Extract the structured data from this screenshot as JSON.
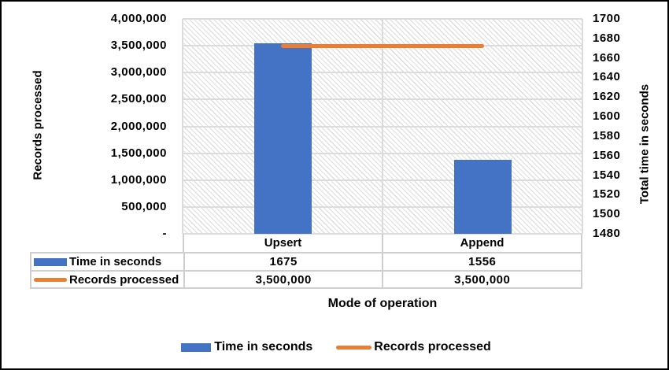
{
  "chart_data": {
    "type": "combo-bar-line",
    "categories": [
      "Upsert",
      "Append"
    ],
    "series": [
      {
        "name": "Time in seconds",
        "type": "bar",
        "axis": "right",
        "values": [
          1675,
          1556
        ],
        "color": "#4472C4"
      },
      {
        "name": "Records processed",
        "type": "line",
        "axis": "left",
        "values": [
          3500000,
          3500000
        ],
        "color": "#ED7D31"
      }
    ],
    "left_axis": {
      "title": "Records processed",
      "min": 0,
      "max": 4000000,
      "tick_labels": [
        "4,000,000",
        "3,500,000",
        "3,000,000",
        "2,500,000",
        "2,000,000",
        "1,500,000",
        "1,000,000",
        "500,000",
        "-"
      ]
    },
    "right_axis": {
      "title": "Total time in seconds",
      "min": 1480,
      "max": 1700,
      "tick_labels": [
        "1700",
        "1680",
        "1660",
        "1640",
        "1620",
        "1600",
        "1580",
        "1560",
        "1540",
        "1520",
        "1500",
        "1480"
      ]
    },
    "x_axis": {
      "title": "Mode of operation"
    },
    "legend": [
      {
        "label": "Time in seconds",
        "swatch": "bar"
      },
      {
        "label": "Records processed",
        "swatch": "line"
      }
    ],
    "data_table": {
      "rows": [
        {
          "label": "Time in seconds",
          "swatch": "bar",
          "values": [
            "1675",
            "1556"
          ]
        },
        {
          "label": "Records processed",
          "swatch": "line",
          "values": [
            "3,500,000",
            "3,500,000"
          ]
        }
      ]
    },
    "grid": true,
    "legend_position": "bottom",
    "plot_background": "diagonal-hatch"
  },
  "colors": {
    "bar_blue": "#4472C4",
    "line_orange": "#ED7D31",
    "gridline": "#DCDCDC",
    "table_border": "#CFCFCF",
    "frame_border": "#000000",
    "text": "#000000"
  }
}
